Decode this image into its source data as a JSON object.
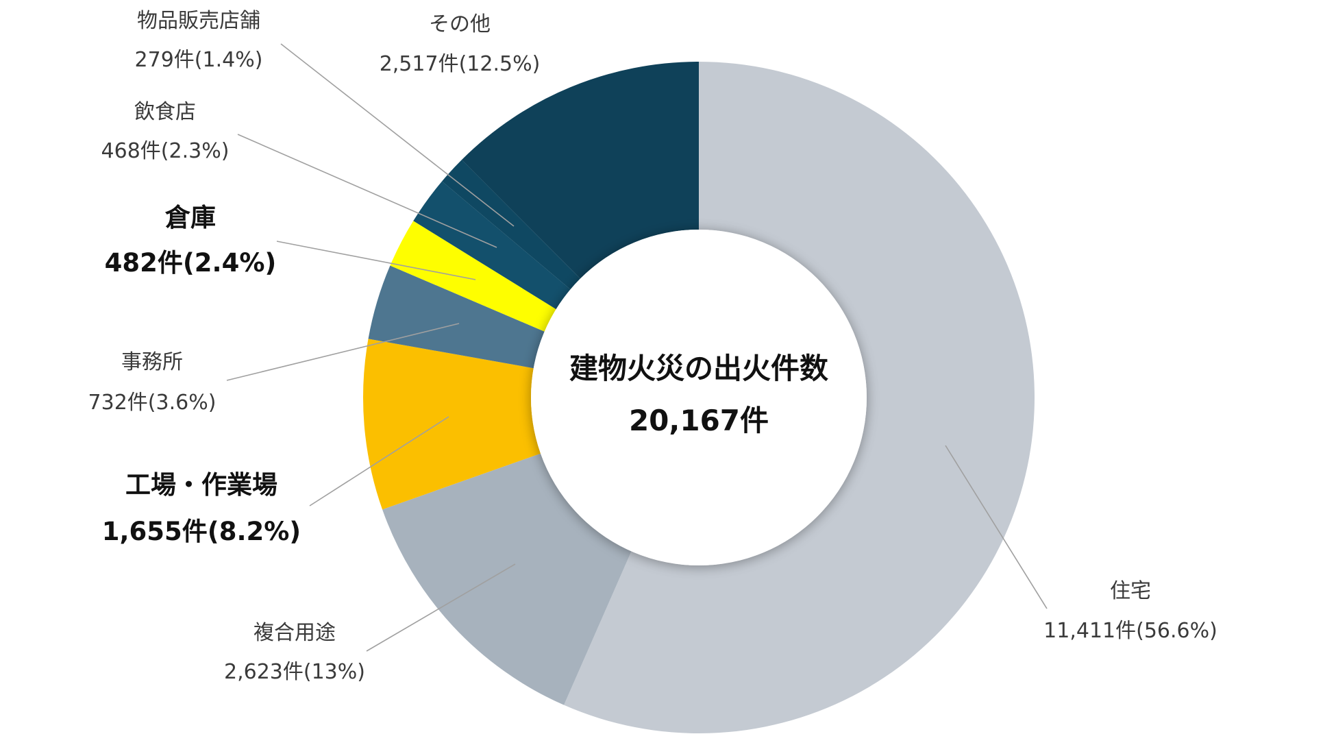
{
  "chart_data": {
    "type": "donut",
    "center": {
      "title": "建物火災の出火件数",
      "total": "20,167件"
    },
    "slices": [
      {
        "name": "住宅",
        "count": 11411,
        "count_label": "11,411件(56.6%)",
        "percent": 56.6,
        "color": "#c4cad2",
        "bold": false
      },
      {
        "name": "複合用途",
        "count": 2623,
        "count_label": "2,623件(13%)",
        "percent": 13,
        "color": "#a7b2bd",
        "bold": false
      },
      {
        "name": "工場・作業場",
        "count": 1655,
        "count_label": "1,655件(8.2%)",
        "percent": 8.2,
        "color": "#fbbf00",
        "bold": true
      },
      {
        "name": "事務所",
        "count": 732,
        "count_label": "732件(3.6%)",
        "percent": 3.6,
        "color": "#4e7690",
        "bold": false
      },
      {
        "name": "倉庫",
        "count": 482,
        "count_label": "482件(2.4%)",
        "percent": 2.4,
        "color": "#fefe00",
        "bold": true
      },
      {
        "name": "飲食店",
        "count": 468,
        "count_label": "468件(2.3%)",
        "percent": 2.3,
        "color": "#13506c",
        "bold": false
      },
      {
        "name": "物品販売店舗",
        "count": 279,
        "count_label": "279件(1.4%)",
        "percent": 1.4,
        "color": "#0f4862",
        "bold": false
      },
      {
        "name": "その他",
        "count": 2517,
        "count_label": "2,517件(12.5%)",
        "percent": 12.5,
        "color": "#0f4159",
        "bold": false
      }
    ]
  }
}
